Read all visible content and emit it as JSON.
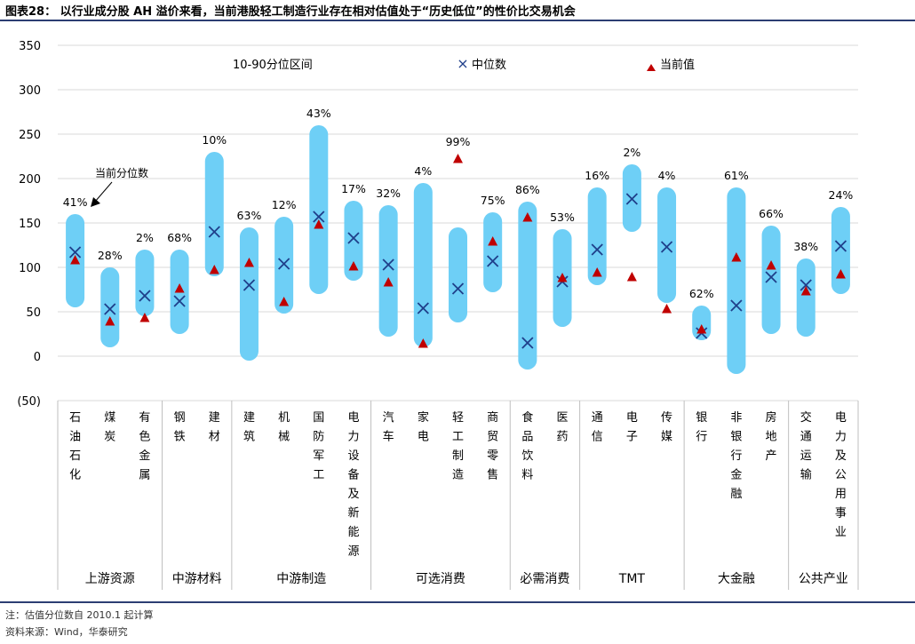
{
  "title": "图表28：  以行业成分股 AH 溢价来看，当前港股轻工制造行业存在相对估值处于“历史低位”的性价比交易机会",
  "notes": {
    "note1": "注：估值分位数自 2010.1 起计算",
    "note2": "资料来源：Wind，华泰研究"
  },
  "colors": {
    "range_bar": "#6ecff6",
    "median_marker": "#1f3f8a",
    "current_marker": "#c00000",
    "grid": "#d9d9d9",
    "rule": "#2c3e73"
  },
  "chart_data": {
    "type": "range-bar",
    "ylim": [
      -50,
      350
    ],
    "yticks": [
      -50,
      0,
      50,
      100,
      150,
      200,
      250,
      300,
      350
    ],
    "ytick_labels": [
      "(50)",
      "0",
      "50",
      "100",
      "150",
      "200",
      "250",
      "300",
      "350"
    ],
    "grid": true,
    "legend": {
      "position": "top",
      "range_label": "10-90分位区间",
      "median_label": "中位数",
      "current_label": "当前值"
    },
    "annotation": "当前分位数",
    "categories": [
      {
        "name": "石油石化",
        "low": 55,
        "high": 160,
        "median": 117,
        "current": 108,
        "percentile": "41%"
      },
      {
        "name": "煤炭",
        "low": 10,
        "high": 100,
        "median": 53,
        "current": 39,
        "percentile": "28%"
      },
      {
        "name": "有色金属",
        "low": 45,
        "high": 120,
        "median": 68,
        "current": 43,
        "percentile": "2%"
      },
      {
        "name": "钢铁",
        "low": 25,
        "high": 120,
        "median": 62,
        "current": 76,
        "percentile": "68%"
      },
      {
        "name": "建材",
        "low": 90,
        "high": 230,
        "median": 140,
        "current": 97,
        "percentile": "10%"
      },
      {
        "name": "建筑",
        "low": -5,
        "high": 145,
        "median": 80,
        "current": 105,
        "percentile": "63%"
      },
      {
        "name": "机械",
        "low": 48,
        "high": 157,
        "median": 104,
        "current": 61,
        "percentile": "12%"
      },
      {
        "name": "国防军工",
        "low": 70,
        "high": 260,
        "median": 157,
        "current": 148,
        "percentile": "43%"
      },
      {
        "name": "电力设备及新能源",
        "low": 85,
        "high": 175,
        "median": 133,
        "current": 101,
        "percentile": "17%"
      },
      {
        "name": "汽车",
        "low": 22,
        "high": 170,
        "median": 103,
        "current": 83,
        "percentile": "32%"
      },
      {
        "name": "家电",
        "low": 10,
        "high": 195,
        "median": 54,
        "current": 14,
        "percentile": "4%"
      },
      {
        "name": "轻工制造",
        "low": 38,
        "high": 145,
        "median": 76,
        "current": 222,
        "percentile": "99%"
      },
      {
        "name": "商贸零售",
        "low": 72,
        "high": 162,
        "median": 107,
        "current": 129,
        "percentile": "75%"
      },
      {
        "name": "食品饮料",
        "low": -15,
        "high": 174,
        "median": 15,
        "current": 156,
        "percentile": "86%"
      },
      {
        "name": "医药",
        "low": 33,
        "high": 143,
        "median": 84,
        "current": 88,
        "percentile": "53%"
      },
      {
        "name": "通信",
        "low": 80,
        "high": 190,
        "median": 120,
        "current": 94,
        "percentile": "16%"
      },
      {
        "name": "电子",
        "low": 140,
        "high": 216,
        "median": 177,
        "current": 89,
        "percentile": "2%"
      },
      {
        "name": "传媒",
        "low": 60,
        "high": 190,
        "median": 123,
        "current": 53,
        "percentile": "4%"
      },
      {
        "name": "银行",
        "low": 18,
        "high": 57,
        "median": 26,
        "current": 30,
        "percentile": "62%"
      },
      {
        "name": "非银行金融",
        "low": -20,
        "high": 190,
        "median": 57,
        "current": 111,
        "percentile": "61%"
      },
      {
        "name": "房地产",
        "low": 25,
        "high": 147,
        "median": 89,
        "current": 102,
        "percentile": "66%"
      },
      {
        "name": "交通运输",
        "low": 22,
        "high": 110,
        "median": 80,
        "current": 73,
        "percentile": "38%"
      },
      {
        "name": "电力及公用事业",
        "low": 70,
        "high": 168,
        "median": 124,
        "current": 92,
        "percentile": "24%"
      }
    ],
    "groups": [
      {
        "name": "上游资源",
        "count": 3
      },
      {
        "name": "中游材料",
        "count": 2
      },
      {
        "name": "中游制造",
        "count": 4
      },
      {
        "name": "可选消费",
        "count": 4
      },
      {
        "name": "必需消费",
        "count": 2
      },
      {
        "name": "TMT",
        "count": 3
      },
      {
        "name": "大金融",
        "count": 3
      },
      {
        "name": "公共产业",
        "count": 2
      }
    ]
  }
}
